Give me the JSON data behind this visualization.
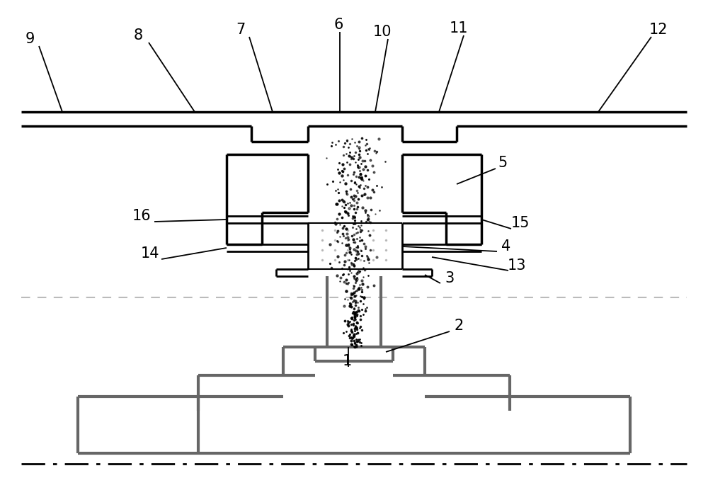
{
  "bg_color": "#ffffff",
  "K": "#000000",
  "G": "#666666",
  "figsize": [
    10.0,
    6.75
  ],
  "dpi": 100
}
